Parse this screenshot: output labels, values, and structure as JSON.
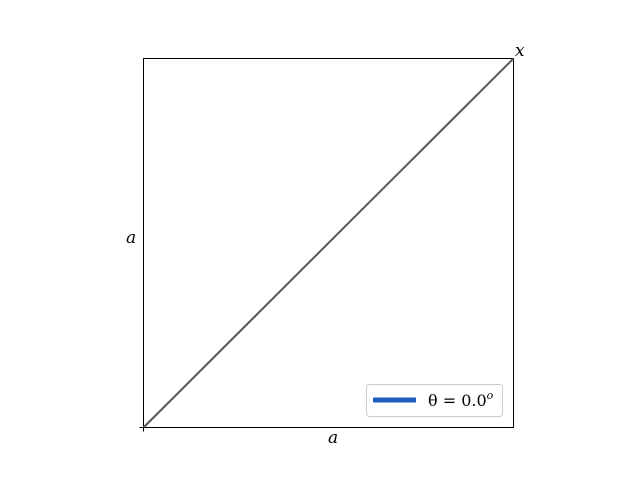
{
  "diagram": {
    "x_side_label": "a",
    "y_side_label": "a",
    "corner_label": "x",
    "legend": {
      "entries": [
        {
          "label_prefix": "θ = 0.0",
          "label_superscript": "o",
          "color": "#1f5fbf"
        }
      ]
    },
    "colors": {
      "diagonal": "#555555",
      "frame": "#000000"
    }
  }
}
